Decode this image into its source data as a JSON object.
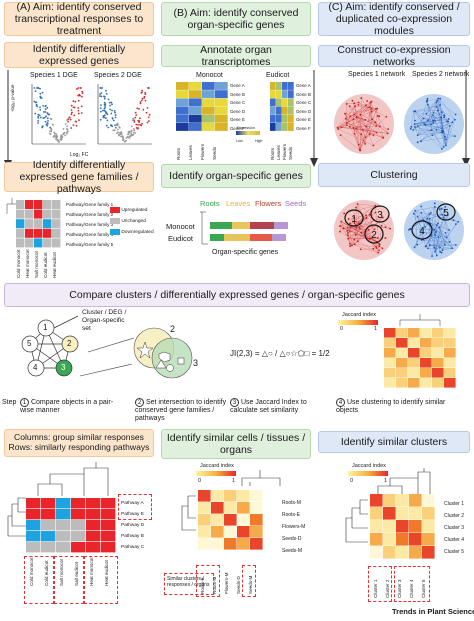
{
  "panels": {
    "a": {
      "header": "(A) Aim: identify conserved transcriptional responses to treatment",
      "box1": "Identify differentially expressed genes",
      "species1": "Species 1 DGE",
      "species2": "Species 2 DGE",
      "ylabel": "-log₁₀ p-value",
      "xlabel": "Log₂ FC",
      "box2": "Identify differentially expressed gene families / pathways",
      "rows": [
        "Pathway/Gene family 1",
        "Pathway/Gene family 2",
        "Pathway/Gene family 3",
        "Pathway/Gene family 4",
        "Pathway/Gene family 5"
      ],
      "cols": [
        "Cold monocot",
        "Heat monocot",
        "Salt monocot",
        "Cold eudicot",
        "Heat eudicot"
      ],
      "legend": [
        "Upregulated",
        "Unchanged",
        "Downregulated"
      ]
    },
    "b": {
      "header": "(B) Aim: identify conserved organ-specific genes",
      "box1": "Annotate organ transcriptomes",
      "monocot": "Monocot",
      "eudicot": "Eudicot",
      "genes": [
        "Gene A",
        "Gene B",
        "Gene C",
        "Gene D",
        "Gene E",
        "Gene F"
      ],
      "organs": [
        "Roots",
        "Leaves",
        "Flowers",
        "Seeds"
      ],
      "expression": "Expression",
      "low": "Low",
      "high": "High",
      "box2": "Identify organ-specific genes",
      "bar_labels": [
        "Roots",
        "Leaves",
        "Flowers",
        "Seeds"
      ],
      "row_labels": [
        "Monocot",
        "Eudicot"
      ],
      "bar_caption": "Organ-specific genes"
    },
    "c": {
      "header": "(C) Aim: identify conserved / duplicated co-expression modules",
      "box1": "Construct co-expression networks",
      "net1": "Species 1 network",
      "net2": "Species 2 network",
      "box2": "Clustering",
      "clusters": [
        "1",
        "2",
        "3",
        "4",
        "5"
      ]
    }
  },
  "compare": {
    "banner": "Compare clusters / differentially expressed genes / organ-specific genes",
    "set_label": "Cluster / DEG / Organ-specific set",
    "nodes": [
      "1",
      "2",
      "3",
      "4",
      "5"
    ],
    "venn": [
      "2",
      "3"
    ],
    "formula": "JI(2,3) = △○ / △○☆⬠□ = 1/2",
    "jaccard_title": "Jaccard index",
    "jaccard_min": "0",
    "jaccard_max": "1",
    "step_word": "Step",
    "steps": [
      {
        "num": "1",
        "text": "Compare objects in a pair-wise manner"
      },
      {
        "num": "2",
        "text": "Set intersection to identify conserved gene families / pathways"
      },
      {
        "num": "3",
        "text": "Use Jaccard Index to calculate set similarity"
      },
      {
        "num": "4",
        "text": "Use clustering to identify similar objects"
      }
    ]
  },
  "bottom": {
    "a": {
      "header": "Columns: group similar responses Rows: similarly responding pathways",
      "rows": [
        "Pathway A",
        "Pathway E",
        "Pathway D",
        "Pathway B",
        "Pathway C"
      ],
      "cols": [
        "Cold monocot",
        "Cold eudicot",
        "Salt monocot",
        "Salt eudicot",
        "Heat monocot",
        "Heat eudicot"
      ]
    },
    "b": {
      "header": "Identify similar cells / tissues / organs",
      "jaccard_title": "Jaccard index",
      "min": "0",
      "max": "1",
      "rows": [
        "Roots-M",
        "Roots-E",
        "Flowers-M",
        "Seeds-D",
        "Seeds-M"
      ],
      "cols": [
        "Roots-E",
        "Roots-M",
        "Flowers-M",
        "Seeds-D",
        "Seeds-M"
      ],
      "note": "Similar clusters / responses / organs"
    },
    "c": {
      "header": "Identify similar clusters",
      "jaccard_title": "Jaccard index",
      "min": "0",
      "max": "1",
      "rows": [
        "Cluster 1",
        "Cluster 2",
        "Cluster 3",
        "Cluster 4",
        "Cluster 5"
      ],
      "cols": [
        "Cluster 1",
        "Cluster 2",
        "Cluster 3",
        "Cluster 4",
        "Cluster 5"
      ]
    }
  },
  "footer": "Trends in Plant Science",
  "colors": {
    "up": "#e8252b",
    "down": "#1fa3e0",
    "unchanged": "#bcbcbc",
    "monocot": "#2fa34a"
  }
}
